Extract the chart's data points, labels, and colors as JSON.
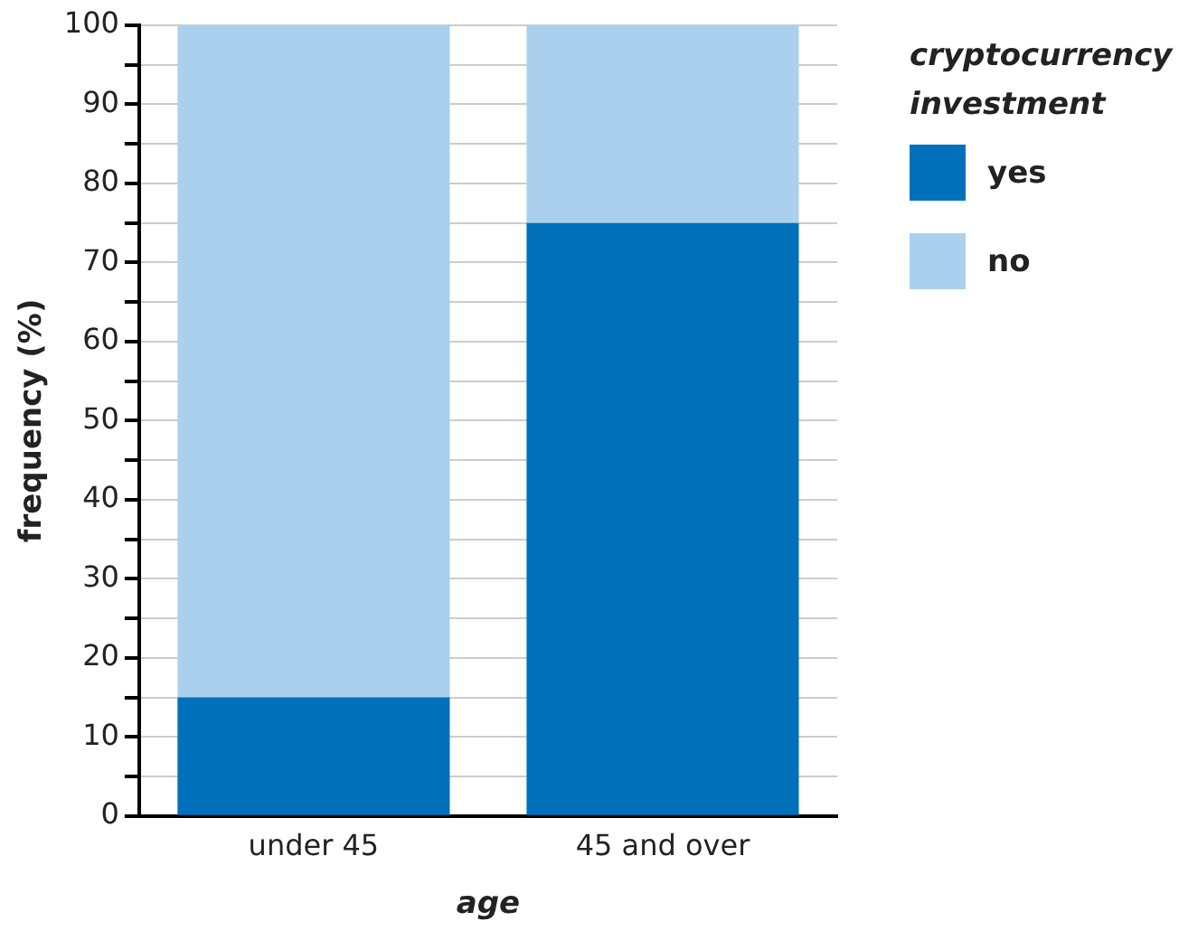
{
  "chart_data": {
    "type": "bar",
    "stacked": true,
    "xlabel": "age",
    "ylabel": "frequency (%)",
    "legend_title": "cryptocurrency investment",
    "legend": "top right",
    "grid": "y",
    "categories": [
      "under 45",
      "45 and over"
    ],
    "series": [
      {
        "name": "yes",
        "color": "#0070bb",
        "values": [
          15,
          75
        ]
      },
      {
        "name": "no",
        "color": "#abd0ee",
        "values": [
          85,
          25
        ]
      }
    ],
    "ylim": [
      0,
      100
    ],
    "yticks": [
      0,
      {
        "value": 5,
        "label": null
      },
      10,
      {
        "value": 15,
        "label": null
      },
      20,
      {
        "value": 25,
        "label": null
      },
      30,
      {
        "value": 35,
        "label": null
      },
      40,
      {
        "value": 45,
        "label": null
      },
      50,
      {
        "value": 55,
        "label": null
      },
      60,
      {
        "value": 65,
        "label": null
      },
      70,
      {
        "value": 75,
        "label": null
      },
      80,
      {
        "value": 85,
        "label": null
      },
      90,
      {
        "value": 95,
        "label": null
      },
      100
    ]
  }
}
